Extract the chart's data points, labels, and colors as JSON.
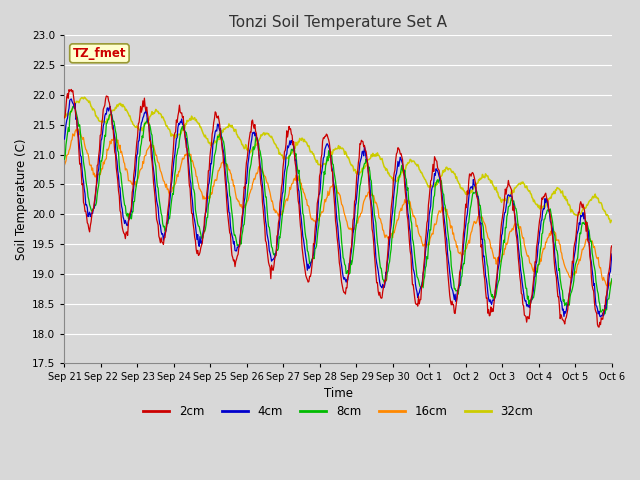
{
  "title": "Tonzi Soil Temperature Set A",
  "xlabel": "Time",
  "ylabel": "Soil Temperature (C)",
  "ylim": [
    17.5,
    23.0
  ],
  "yticks": [
    17.5,
    18.0,
    18.5,
    19.0,
    19.5,
    20.0,
    20.5,
    21.0,
    21.5,
    22.0,
    22.5,
    23.0
  ],
  "line_colors": {
    "2cm": "#cc0000",
    "4cm": "#0000cc",
    "8cm": "#00bb00",
    "16cm": "#ff8800",
    "32cm": "#cccc00"
  },
  "legend_label": "TZ_fmet",
  "legend_label_color": "#cc0000",
  "legend_box_facecolor": "#ffffcc",
  "legend_box_edgecolor": "#999933",
  "background_color": "#d8d8d8",
  "plot_background": "#d8d8d8",
  "grid_color": "#ffffff",
  "x_tick_labels": [
    "Sep 21",
    "Sep 22",
    "Sep 23",
    "Sep 24",
    "Sep 25",
    "Sep 26",
    "Sep 27",
    "Sep 28",
    "Sep 29",
    "Sep 30",
    "Oct 1",
    "Oct 2",
    "Oct 3",
    "Oct 4",
    "Oct 5",
    "Oct 6"
  ],
  "series_labels": [
    "2cm",
    "4cm",
    "8cm",
    "16cm",
    "32cm"
  ],
  "figsize": [
    6.4,
    4.8
  ],
  "dpi": 100
}
